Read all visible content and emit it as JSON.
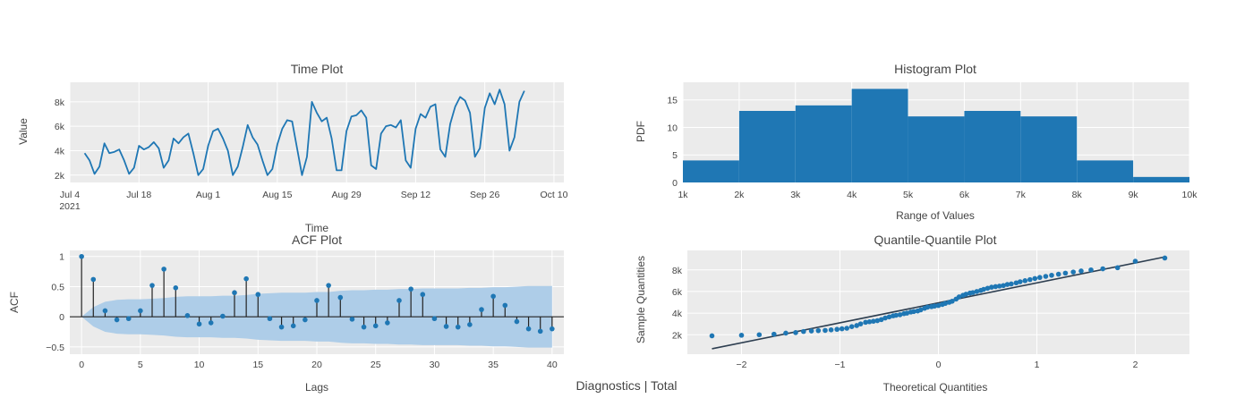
{
  "figure_title": "Diagnostics | Total",
  "colors": {
    "series": "#1f77b4",
    "plot_bg": "#ebebeb",
    "grid": "#ffffff",
    "band": "#aecde8",
    "qq_line": "#2d3e50"
  },
  "chart_data": [
    {
      "id": "time",
      "type": "line",
      "title": "Time Plot",
      "xlabel": "Time",
      "ylabel": "Value",
      "x_tick_labels": [
        "Jul 4",
        "Jul 18",
        "Aug 1",
        "Aug 15",
        "Aug 29",
        "Sep 12",
        "Sep 26",
        "Oct 10"
      ],
      "x_year_label": "2021",
      "y_tick_labels": [
        "2k",
        "4k",
        "6k",
        "8k"
      ],
      "y_ticks": [
        2000,
        4000,
        6000,
        8000
      ],
      "ylim": [
        1400,
        9600
      ],
      "x_day_range": [
        0,
        100
      ],
      "values": [
        3800,
        3200,
        2100,
        2700,
        4600,
        3800,
        3900,
        4100,
        3200,
        2100,
        2600,
        4400,
        4100,
        4300,
        4700,
        4200,
        2600,
        3200,
        5000,
        4600,
        5100,
        5400,
        3800,
        2000,
        2500,
        4400,
        5600,
        5800,
        5000,
        4000,
        2000,
        2700,
        4300,
        6100,
        5100,
        4500,
        3200,
        2000,
        2500,
        4500,
        5800,
        6500,
        6400,
        4200,
        2000,
        3500,
        8000,
        7100,
        6400,
        6700,
        5000,
        2400,
        2400,
        5600,
        6800,
        6900,
        7300,
        6700,
        2800,
        2500,
        5400,
        6000,
        6100,
        5900,
        6500,
        3200,
        2600,
        5800,
        7000,
        6700,
        7600,
        7800,
        4100,
        3500,
        6200,
        7600,
        8400,
        8100,
        7100,
        3500,
        4200,
        7500,
        8700,
        7800,
        9000,
        7800,
        4000,
        5100,
        8000,
        8900
      ]
    },
    {
      "id": "hist",
      "type": "bar",
      "title": "Histogram Plot",
      "xlabel": "Range of Values",
      "ylabel": "PDF",
      "x_tick_labels": [
        "1k",
        "2k",
        "3k",
        "4k",
        "5k",
        "6k",
        "7k",
        "8k",
        "9k",
        "10k"
      ],
      "bin_edges": [
        1000,
        2000,
        3000,
        4000,
        5000,
        6000,
        7000,
        8000,
        9000,
        10000
      ],
      "values": [
        4,
        13,
        14,
        17,
        12,
        13,
        12,
        4,
        1
      ],
      "y_tick_labels": [
        "0",
        "5",
        "10",
        "15"
      ],
      "y_ticks": [
        0,
        5,
        10,
        15
      ],
      "ylim": [
        0,
        18.2
      ]
    },
    {
      "id": "acf",
      "type": "scatter",
      "title": "ACF Plot",
      "xlabel": "Lags",
      "ylabel": "ACF",
      "x_tick_labels": [
        "0",
        "5",
        "10",
        "15",
        "20",
        "25",
        "30",
        "35",
        "40"
      ],
      "x_ticks": [
        0,
        5,
        10,
        15,
        20,
        25,
        30,
        35,
        40
      ],
      "xlim": [
        -1,
        41
      ],
      "y_tick_labels": [
        "−0.5",
        "0",
        "0.5",
        "1"
      ],
      "y_ticks": [
        -0.5,
        0,
        0.5,
        1
      ],
      "ylim": [
        -0.62,
        1.1
      ],
      "values": [
        1,
        0.62,
        0.1,
        -0.05,
        -0.03,
        0.1,
        0.52,
        0.79,
        0.48,
        0.02,
        -0.12,
        -0.1,
        0.01,
        0.4,
        0.63,
        0.37,
        -0.03,
        -0.17,
        -0.15,
        -0.05,
        0.27,
        0.52,
        0.32,
        -0.04,
        -0.17,
        -0.15,
        -0.1,
        0.27,
        0.46,
        0.37,
        -0.03,
        -0.16,
        -0.17,
        -0.13,
        0.12,
        0.34,
        0.19,
        -0.08,
        -0.2,
        -0.24,
        -0.2
      ],
      "confidence_band": [
        0,
        0.16,
        0.25,
        0.28,
        0.29,
        0.29,
        0.3,
        0.31,
        0.33,
        0.34,
        0.34,
        0.34,
        0.35,
        0.35,
        0.36,
        0.38,
        0.39,
        0.4,
        0.4,
        0.4,
        0.41,
        0.41,
        0.43,
        0.44,
        0.44,
        0.45,
        0.45,
        0.46,
        0.46,
        0.47,
        0.47,
        0.47,
        0.47,
        0.48,
        0.48,
        0.49,
        0.49,
        0.5,
        0.51,
        0.51,
        0.51
      ]
    },
    {
      "id": "qq",
      "type": "scatter",
      "title": "Quantile-Quantile Plot",
      "xlabel": "Theoretical Quantities",
      "ylabel": "Sample Quantities",
      "x_tick_labels": [
        "−2",
        "−1",
        "0",
        "1",
        "2"
      ],
      "x_ticks": [
        -2,
        -1,
        0,
        1,
        2
      ],
      "xlim": [
        -2.55,
        2.55
      ],
      "y_tick_labels": [
        "2k",
        "4k",
        "6k",
        "8k"
      ],
      "y_ticks": [
        2000,
        4000,
        6000,
        8000
      ],
      "ylim": [
        200,
        9800
      ],
      "fit_line": {
        "x": [
          -2.3,
          2.3
        ],
        "y": [
          700,
          9200
        ]
      },
      "points": [
        [
          -2.3,
          1900
        ],
        [
          -2.0,
          1950
        ],
        [
          -1.82,
          2000
        ],
        [
          -1.67,
          2050
        ],
        [
          -1.55,
          2150
        ],
        [
          -1.45,
          2200
        ],
        [
          -1.37,
          2300
        ],
        [
          -1.29,
          2350
        ],
        [
          -1.22,
          2380
        ],
        [
          -1.15,
          2400
        ],
        [
          -1.09,
          2450
        ],
        [
          -1.03,
          2500
        ],
        [
          -0.98,
          2550
        ],
        [
          -0.93,
          2600
        ],
        [
          -0.88,
          2750
        ],
        [
          -0.83,
          2850
        ],
        [
          -0.79,
          3000
        ],
        [
          -0.74,
          3150
        ],
        [
          -0.7,
          3200
        ],
        [
          -0.66,
          3250
        ],
        [
          -0.62,
          3300
        ],
        [
          -0.58,
          3400
        ],
        [
          -0.54,
          3550
        ],
        [
          -0.5,
          3650
        ],
        [
          -0.46,
          3750
        ],
        [
          -0.43,
          3800
        ],
        [
          -0.39,
          3850
        ],
        [
          -0.35,
          3950
        ],
        [
          -0.32,
          4000
        ],
        [
          -0.28,
          4100
        ],
        [
          -0.25,
          4150
        ],
        [
          -0.21,
          4200
        ],
        [
          -0.18,
          4300
        ],
        [
          -0.14,
          4450
        ],
        [
          -0.11,
          4550
        ],
        [
          -0.07,
          4600
        ],
        [
          -0.04,
          4650
        ],
        [
          0.0,
          4700
        ],
        [
          0.04,
          4800
        ],
        [
          0.07,
          4900
        ],
        [
          0.11,
          5000
        ],
        [
          0.14,
          5100
        ],
        [
          0.18,
          5300
        ],
        [
          0.21,
          5500
        ],
        [
          0.25,
          5650
        ],
        [
          0.28,
          5750
        ],
        [
          0.32,
          5850
        ],
        [
          0.35,
          5900
        ],
        [
          0.39,
          6000
        ],
        [
          0.43,
          6100
        ],
        [
          0.46,
          6200
        ],
        [
          0.5,
          6300
        ],
        [
          0.54,
          6400
        ],
        [
          0.58,
          6450
        ],
        [
          0.62,
          6500
        ],
        [
          0.66,
          6550
        ],
        [
          0.7,
          6650
        ],
        [
          0.74,
          6700
        ],
        [
          0.79,
          6800
        ],
        [
          0.83,
          6900
        ],
        [
          0.88,
          7000
        ],
        [
          0.93,
          7100
        ],
        [
          0.98,
          7200
        ],
        [
          1.03,
          7300
        ],
        [
          1.09,
          7400
        ],
        [
          1.15,
          7500
        ],
        [
          1.22,
          7600
        ],
        [
          1.29,
          7700
        ],
        [
          1.37,
          7800
        ],
        [
          1.45,
          7900
        ],
        [
          1.55,
          8000
        ],
        [
          1.67,
          8100
        ],
        [
          1.82,
          8200
        ],
        [
          2.0,
          8800
        ],
        [
          2.3,
          9100
        ]
      ]
    }
  ]
}
